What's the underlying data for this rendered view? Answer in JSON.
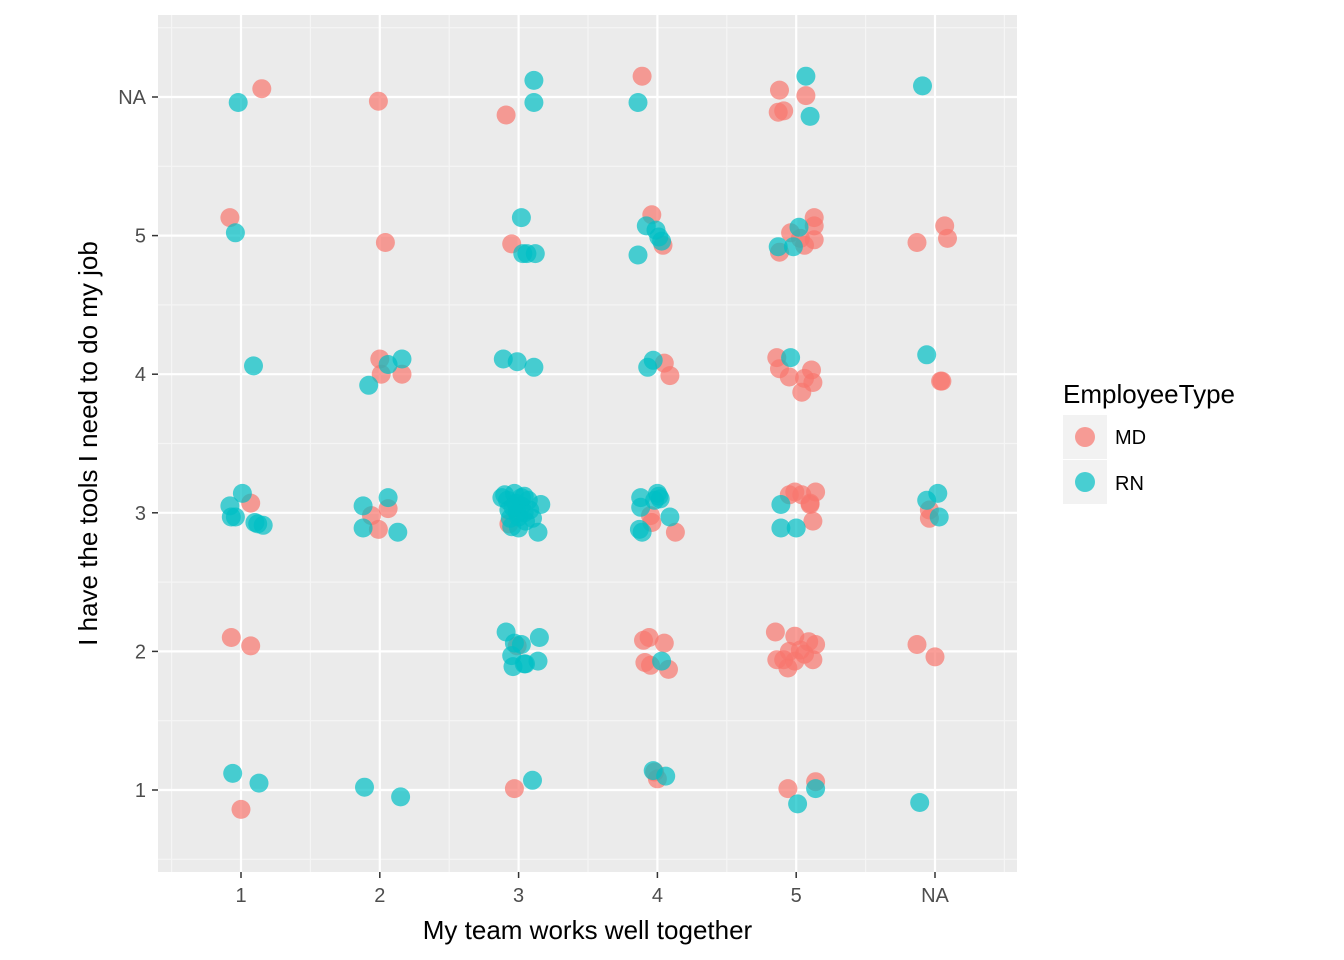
{
  "chart_data": {
    "type": "scatter",
    "title": "",
    "xlabel": "My team works well together",
    "ylabel": "I have the tools I need to do my job",
    "x_categories": [
      "1",
      "2",
      "3",
      "4",
      "5",
      "NA"
    ],
    "y_categories": [
      "1",
      "2",
      "3",
      "4",
      "5",
      "NA"
    ],
    "jitter": true,
    "grid": true,
    "legend": {
      "title": "EmployeeType",
      "placement": "right",
      "entries": [
        {
          "name": "MD",
          "color": "#F8766D"
        },
        {
          "name": "RN",
          "color": "#00BFC4"
        }
      ]
    },
    "series": [
      {
        "name": "MD",
        "color": "#F8766D",
        "points": [
          [
            1.15,
            6.06
          ],
          [
            1.99,
            5.97
          ],
          [
            2.91,
            5.87
          ],
          [
            3.89,
            6.15
          ],
          [
            4.88,
            6.05
          ],
          [
            4.87,
            5.89
          ],
          [
            4.91,
            5.9
          ],
          [
            5.07,
            6.01
          ],
          [
            0.92,
            5.13
          ],
          [
            2.04,
            4.95
          ],
          [
            2.95,
            4.94
          ],
          [
            3.96,
            5.15
          ],
          [
            4.04,
            4.93
          ],
          [
            4.88,
            4.88
          ],
          [
            4.96,
            5.02
          ],
          [
            5.03,
            4.98
          ],
          [
            5.06,
            4.93
          ],
          [
            5.13,
            5.13
          ],
          [
            5.13,
            5.07
          ],
          [
            5.13,
            4.97
          ],
          [
            5.87,
            4.95
          ],
          [
            6.07,
            5.07
          ],
          [
            6.09,
            4.98
          ],
          [
            2.0,
            4.11
          ],
          [
            2.01,
            4.0
          ],
          [
            2.16,
            4.0
          ],
          [
            4.05,
            4.08
          ],
          [
            4.09,
            3.99
          ],
          [
            4.86,
            4.12
          ],
          [
            4.88,
            4.04
          ],
          [
            4.95,
            3.98
          ],
          [
            5.04,
            3.87
          ],
          [
            5.06,
            3.97
          ],
          [
            5.11,
            4.03
          ],
          [
            5.12,
            3.94
          ],
          [
            6.04,
            3.95
          ],
          [
            6.05,
            3.95
          ],
          [
            1.07,
            3.07
          ],
          [
            1.94,
            2.98
          ],
          [
            1.99,
            2.88
          ],
          [
            2.06,
            3.03
          ],
          [
            2.93,
            2.92
          ],
          [
            3.95,
            2.98
          ],
          [
            3.96,
            2.93
          ],
          [
            4.13,
            2.86
          ],
          [
            4.95,
            3.13
          ],
          [
            4.99,
            3.15
          ],
          [
            5.04,
            3.13
          ],
          [
            5.1,
            3.07
          ],
          [
            5.12,
            2.94
          ],
          [
            5.14,
            3.15
          ],
          [
            5.1,
            3.06
          ],
          [
            5.96,
            3.02
          ],
          [
            5.96,
            2.96
          ],
          [
            0.93,
            2.1
          ],
          [
            1.07,
            2.04
          ],
          [
            2.99,
            2.04
          ],
          [
            3.9,
            2.08
          ],
          [
            3.94,
            2.1
          ],
          [
            3.91,
            1.92
          ],
          [
            3.95,
            1.9
          ],
          [
            4.05,
            2.06
          ],
          [
            4.08,
            1.87
          ],
          [
            4.85,
            2.14
          ],
          [
            4.86,
            1.94
          ],
          [
            4.91,
            1.94
          ],
          [
            4.94,
            1.88
          ],
          [
            4.95,
            2.0
          ],
          [
            4.99,
            2.11
          ],
          [
            4.99,
            1.93
          ],
          [
            5.03,
            2.01
          ],
          [
            5.06,
            1.98
          ],
          [
            5.09,
            2.07
          ],
          [
            5.12,
            1.94
          ],
          [
            5.14,
            2.05
          ],
          [
            5.87,
            2.05
          ],
          [
            6.0,
            1.96
          ],
          [
            1.0,
            0.86
          ],
          [
            2.97,
            1.01
          ],
          [
            3.98,
            1.13
          ],
          [
            4.0,
            1.08
          ],
          [
            4.94,
            1.01
          ],
          [
            5.14,
            1.06
          ]
        ]
      },
      {
        "name": "RN",
        "color": "#00BFC4",
        "points": [
          [
            0.98,
            5.96
          ],
          [
            3.11,
            6.12
          ],
          [
            3.11,
            5.96
          ],
          [
            3.86,
            5.96
          ],
          [
            5.07,
            6.15
          ],
          [
            5.1,
            5.86
          ],
          [
            5.91,
            6.08
          ],
          [
            0.96,
            5.02
          ],
          [
            3.02,
            5.13
          ],
          [
            3.03,
            4.87
          ],
          [
            3.06,
            4.87
          ],
          [
            3.12,
            4.87
          ],
          [
            3.86,
            4.86
          ],
          [
            3.92,
            5.07
          ],
          [
            3.99,
            5.04
          ],
          [
            4.01,
            4.99
          ],
          [
            4.03,
            4.96
          ],
          [
            4.87,
            4.92
          ],
          [
            4.98,
            4.92
          ],
          [
            5.02,
            5.06
          ],
          [
            1.09,
            4.06
          ],
          [
            1.92,
            3.92
          ],
          [
            2.06,
            4.07
          ],
          [
            2.16,
            4.11
          ],
          [
            2.89,
            4.11
          ],
          [
            2.99,
            4.09
          ],
          [
            3.11,
            4.05
          ],
          [
            3.93,
            4.05
          ],
          [
            3.97,
            4.1
          ],
          [
            4.96,
            4.12
          ],
          [
            5.94,
            4.14
          ],
          [
            0.92,
            3.05
          ],
          [
            0.93,
            2.97
          ],
          [
            0.96,
            2.97
          ],
          [
            1.01,
            3.14
          ],
          [
            1.1,
            2.93
          ],
          [
            1.12,
            2.92
          ],
          [
            1.16,
            2.91
          ],
          [
            1.88,
            3.05
          ],
          [
            1.88,
            2.89
          ],
          [
            2.06,
            3.11
          ],
          [
            2.13,
            2.86
          ],
          [
            2.88,
            3.11
          ],
          [
            2.9,
            3.13
          ],
          [
            2.92,
            3.09
          ],
          [
            2.93,
            3.02
          ],
          [
            2.94,
            2.96
          ],
          [
            2.95,
            2.9
          ],
          [
            2.97,
            3.14
          ],
          [
            2.98,
            3.07
          ],
          [
            2.99,
            3.0
          ],
          [
            3.0,
            2.97
          ],
          [
            3.0,
            2.89
          ],
          [
            3.02,
            3.11
          ],
          [
            3.02,
            3.05
          ],
          [
            3.04,
            3.0
          ],
          [
            3.05,
            2.94
          ],
          [
            3.07,
            3.09
          ],
          [
            3.08,
            3.02
          ],
          [
            3.1,
            2.96
          ],
          [
            3.14,
            2.86
          ],
          [
            3.16,
            3.06
          ],
          [
            2.96,
            3.04
          ],
          [
            3.04,
            3.12
          ],
          [
            3.87,
            2.88
          ],
          [
            3.88,
            3.11
          ],
          [
            3.89,
            2.86
          ],
          [
            3.98,
            3.09
          ],
          [
            4.0,
            3.14
          ],
          [
            4.01,
            3.12
          ],
          [
            4.02,
            3.1
          ],
          [
            4.09,
            2.97
          ],
          [
            3.88,
            3.04
          ],
          [
            4.89,
            2.89
          ],
          [
            4.89,
            3.06
          ],
          [
            5.0,
            2.89
          ],
          [
            5.94,
            3.09
          ],
          [
            6.02,
            3.14
          ],
          [
            6.03,
            2.97
          ],
          [
            2.91,
            2.14
          ],
          [
            2.95,
            1.97
          ],
          [
            2.96,
            1.89
          ],
          [
            2.97,
            2.06
          ],
          [
            3.02,
            2.05
          ],
          [
            3.04,
            1.91
          ],
          [
            3.05,
            1.91
          ],
          [
            3.14,
            1.93
          ],
          [
            3.15,
            2.1
          ],
          [
            4.03,
            1.93
          ],
          [
            0.94,
            1.12
          ],
          [
            1.13,
            1.05
          ],
          [
            1.89,
            1.02
          ],
          [
            2.15,
            0.95
          ],
          [
            3.1,
            1.07
          ],
          [
            3.97,
            1.14
          ],
          [
            4.06,
            1.1
          ],
          [
            5.01,
            0.9
          ],
          [
            5.14,
            1.01
          ],
          [
            5.89,
            0.91
          ]
        ]
      }
    ]
  }
}
